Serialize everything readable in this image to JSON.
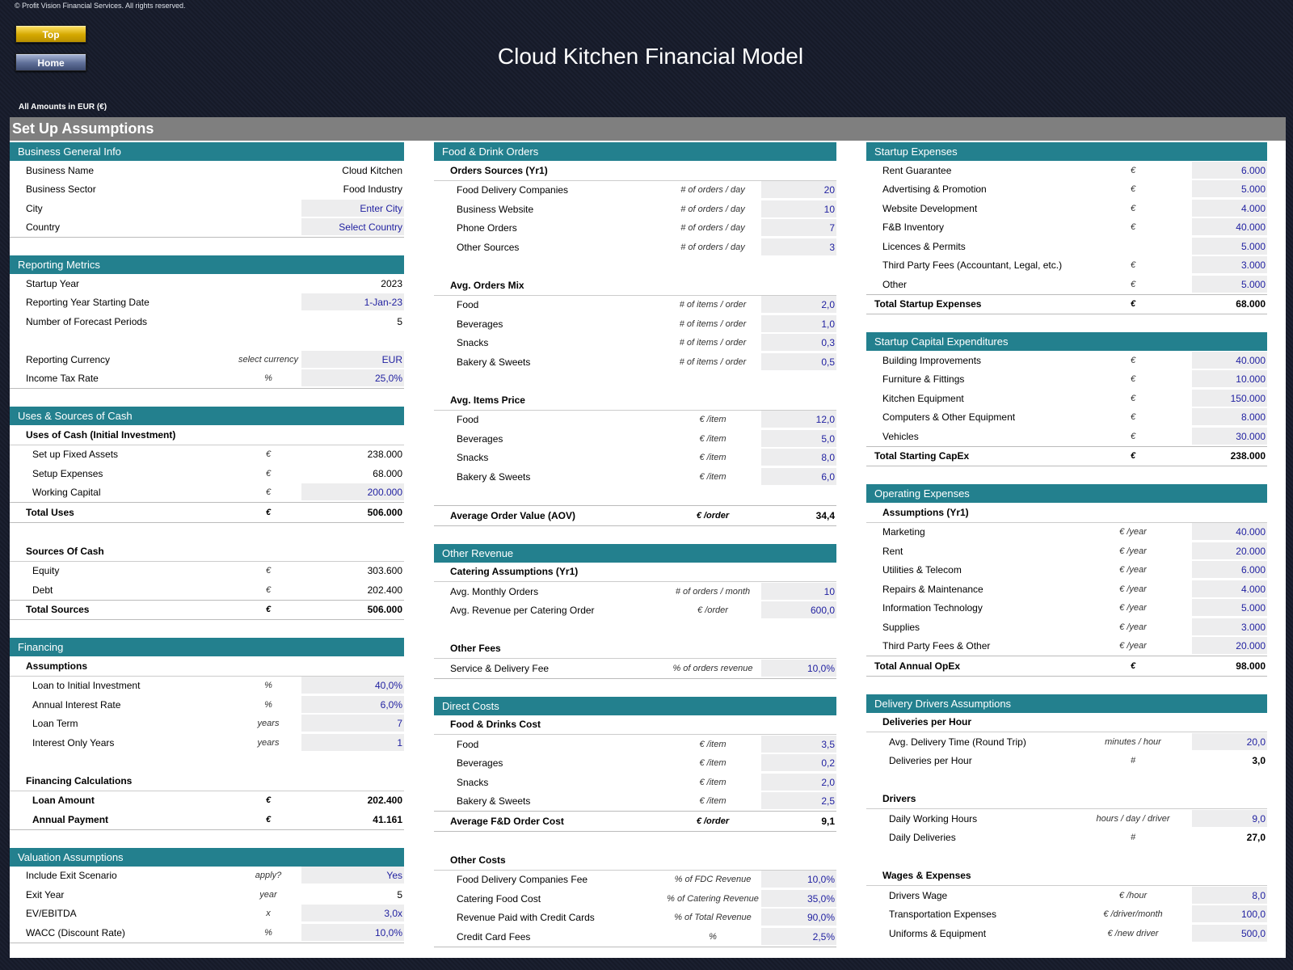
{
  "header": {
    "copyright": "© Profit Vision Financial Services. All rights reserved.",
    "top_button": "Top",
    "home_button": "Home",
    "title": "Cloud Kitchen Financial Model",
    "amounts_note": "All Amounts in  EUR (€)",
    "sheet_title": "Set Up Assumptions"
  },
  "col1": {
    "business": {
      "title": "Business General Info",
      "rows": [
        {
          "label": "Business Name",
          "unit": "",
          "value": "Cloud Kitchen",
          "input": false
        },
        {
          "label": "Business Sector",
          "unit": "",
          "value": "Food Industry",
          "input": false
        },
        {
          "label": "City",
          "unit": "",
          "value": "Enter City",
          "input": true
        },
        {
          "label": "Country",
          "unit": "",
          "value": "Select Country",
          "input": true
        }
      ]
    },
    "reporting": {
      "title": "Reporting Metrics",
      "rows": [
        {
          "label": "Startup Year",
          "unit": "",
          "value": "2023",
          "input": false
        },
        {
          "label": "Reporting Year Starting Date",
          "unit": "",
          "value": "1-Jan-23",
          "input": true
        },
        {
          "label": "Number of Forecast Periods",
          "unit": "",
          "value": "5",
          "input": false
        }
      ],
      "rows2": [
        {
          "label": "Reporting Currency",
          "unit": "select currency",
          "value": "EUR",
          "input": true
        },
        {
          "label": "Income Tax Rate",
          "unit": "%",
          "value": "25,0%",
          "input": true
        }
      ]
    },
    "uses": {
      "title": "Uses & Sources of Cash",
      "uses_head": "Uses of Cash (Initial Investment)",
      "uses_rows": [
        {
          "label": "Set up Fixed Assets",
          "unit": "€",
          "value": "238.000",
          "input": false
        },
        {
          "label": "Setup Expenses",
          "unit": "€",
          "value": "68.000",
          "input": false
        },
        {
          "label": "Working Capital",
          "unit": "€",
          "value": "200.000",
          "input": true
        }
      ],
      "uses_total": {
        "label": "Total Uses",
        "unit": "€",
        "value": "506.000"
      },
      "sources_head": "Sources Of Cash",
      "sources_rows": [
        {
          "label": "Equity",
          "unit": "€",
          "value": "303.600",
          "input": false
        },
        {
          "label": "Debt",
          "unit": "€",
          "value": "202.400",
          "input": false
        }
      ],
      "sources_total": {
        "label": "Total Sources",
        "unit": "€",
        "value": "506.000"
      }
    },
    "financing": {
      "title": "Financing",
      "assump_head": "Assumptions",
      "rows": [
        {
          "label": "Loan to Initial Investment",
          "unit": "%",
          "value": "40,0%",
          "input": true
        },
        {
          "label": "Annual Interest Rate",
          "unit": "%",
          "value": "6,0%",
          "input": true
        },
        {
          "label": "Loan Term",
          "unit": "years",
          "value": "7",
          "input": true
        },
        {
          "label": "Interest Only Years",
          "unit": "years",
          "value": "1",
          "input": true
        }
      ],
      "calc_head": "Financing Calculations",
      "calc_rows": [
        {
          "label": "Loan Amount",
          "unit": "€",
          "value": "202.400"
        },
        {
          "label": "Annual Payment",
          "unit": "€",
          "value": "41.161"
        }
      ]
    },
    "valuation": {
      "title": "Valuation Assumptions",
      "rows": [
        {
          "label": "Include Exit Scenario",
          "unit": "apply?",
          "value": "Yes",
          "input": true
        },
        {
          "label": "Exit Year",
          "unit": "year",
          "value": "5",
          "input": false
        },
        {
          "label": "EV/EBITDA",
          "unit": "x",
          "value": "3,0x",
          "input": true
        },
        {
          "label": "WACC (Discount Rate)",
          "unit": "%",
          "value": "10,0%",
          "input": true
        }
      ]
    }
  },
  "col2": {
    "orders": {
      "title": "Food & Drink Orders",
      "sources_head": "Orders Sources (Yr1)",
      "sources": [
        {
          "label": "Food Delivery Companies",
          "unit": "# of orders / day",
          "value": "20"
        },
        {
          "label": "Business Website",
          "unit": "# of orders / day",
          "value": "10"
        },
        {
          "label": "Phone Orders",
          "unit": "# of orders / day",
          "value": "7"
        },
        {
          "label": "Other Sources",
          "unit": "# of orders / day",
          "value": "3"
        }
      ],
      "mix_head": "Avg. Orders Mix",
      "mix": [
        {
          "label": "Food",
          "unit": "# of items / order",
          "value": "2,0"
        },
        {
          "label": "Beverages",
          "unit": "# of items / order",
          "value": "1,0"
        },
        {
          "label": "Snacks",
          "unit": "# of items / order",
          "value": "0,3"
        },
        {
          "label": "Bakery & Sweets",
          "unit": "# of items / order",
          "value": "0,5"
        }
      ],
      "price_head": "Avg. Items Price",
      "price": [
        {
          "label": "Food",
          "unit": "€ /item",
          "value": "12,0"
        },
        {
          "label": "Beverages",
          "unit": "€ /item",
          "value": "5,0"
        },
        {
          "label": "Snacks",
          "unit": "€ /item",
          "value": "8,0"
        },
        {
          "label": "Bakery & Sweets",
          "unit": "€ /item",
          "value": "6,0"
        }
      ],
      "aov": {
        "label": "Average Order Value (AOV)",
        "unit": "€ /order",
        "value": "34,4"
      }
    },
    "other_revenue": {
      "title": "Other Revenue",
      "catering_head": "Catering Assumptions (Yr1)",
      "catering": [
        {
          "label": "Avg. Monthly Orders",
          "unit": "# of orders / month",
          "value": "10"
        },
        {
          "label": "Avg. Revenue per Catering Order",
          "unit": "€ /order",
          "value": "600,0"
        }
      ],
      "fees_head": "Other Fees",
      "fees": [
        {
          "label": "Service & Delivery Fee",
          "unit": "% of orders revenue",
          "value": "10,0%"
        }
      ]
    },
    "direct": {
      "title": "Direct Costs",
      "cost_head": "Food & Drinks Cost",
      "costs": [
        {
          "label": "Food",
          "unit": "€ /item",
          "value": "3,5"
        },
        {
          "label": "Beverages",
          "unit": "€ /item",
          "value": "0,2"
        },
        {
          "label": "Snacks",
          "unit": "€ /item",
          "value": "2,0"
        },
        {
          "label": "Bakery & Sweets",
          "unit": "€ /item",
          "value": "2,5"
        }
      ],
      "avg": {
        "label": "Average F&D Order Cost",
        "unit": "€ /order",
        "value": "9,1"
      },
      "other_head": "Other Costs",
      "other": [
        {
          "label": "Food Delivery Companies Fee",
          "unit": "% of FDC Revenue",
          "value": "10,0%"
        },
        {
          "label": "Catering Food Cost",
          "unit": "% of Catering Revenue",
          "value": "35,0%"
        },
        {
          "label": "Revenue Paid with Credit Cards",
          "unit": "% of Total Revenue",
          "value": "90,0%"
        },
        {
          "label": "Credit Card Fees",
          "unit": "%",
          "value": "2,5%"
        }
      ]
    }
  },
  "col3": {
    "startup": {
      "title": "Startup Expenses",
      "rows": [
        {
          "label": "Rent Guarantee",
          "unit": "€",
          "value": "6.000"
        },
        {
          "label": "Advertising & Promotion",
          "unit": "€",
          "value": "5.000"
        },
        {
          "label": "Website Development",
          "unit": "€",
          "value": "4.000"
        },
        {
          "label": "F&B Inventory",
          "unit": "€",
          "value": "40.000"
        },
        {
          "label": "Licences & Permits",
          "unit": "",
          "value": "5.000"
        },
        {
          "label": "Third Party Fees (Accountant, Legal, etc.)",
          "unit": "€",
          "value": "3.000"
        },
        {
          "label": "Other",
          "unit": "€",
          "value": "5.000"
        }
      ],
      "total": {
        "label": "Total Startup Expenses",
        "unit": "€",
        "value": "68.000"
      }
    },
    "capex": {
      "title": "Startup Capital Expenditures",
      "rows": [
        {
          "label": "Building Improvements",
          "unit": "€",
          "value": "40.000"
        },
        {
          "label": "Furniture & Fittings",
          "unit": "€",
          "value": "10.000"
        },
        {
          "label": "Kitchen Equipment",
          "unit": "€",
          "value": "150.000"
        },
        {
          "label": "Computers & Other Equipment",
          "unit": "€",
          "value": "8.000"
        },
        {
          "label": "Vehicles",
          "unit": "€",
          "value": "30.000"
        }
      ],
      "total": {
        "label": "Total Starting CapEx",
        "unit": "€",
        "value": "238.000"
      }
    },
    "opex": {
      "title": "Operating Expenses",
      "head": "Assumptions (Yr1)",
      "rows": [
        {
          "label": "Marketing",
          "unit": "€ /year",
          "value": "40.000"
        },
        {
          "label": "Rent",
          "unit": "€ /year",
          "value": "20.000"
        },
        {
          "label": "Utilities & Telecom",
          "unit": "€ /year",
          "value": "6.000"
        },
        {
          "label": "Repairs & Maintenance",
          "unit": "€ /year",
          "value": "4.000"
        },
        {
          "label": "Information Technology",
          "unit": "€ /year",
          "value": "5.000"
        },
        {
          "label": "Supplies",
          "unit": "€ /year",
          "value": "3.000"
        },
        {
          "label": "Third Party Fees & Other",
          "unit": "€ /year",
          "value": "20.000"
        }
      ],
      "total": {
        "label": "Total Annual OpEx",
        "unit": "€",
        "value": "98.000"
      }
    },
    "drivers": {
      "title": "Delivery Drivers Assumptions",
      "dph_head": "Deliveries per Hour",
      "dph": [
        {
          "label": "Avg. Delivery Time (Round Trip)",
          "unit": "minutes / hour",
          "value": "20,0",
          "input": true
        },
        {
          "label": "Deliveries per Hour",
          "unit": "#",
          "value": "3,0",
          "input": false
        }
      ],
      "drivers_head": "Drivers",
      "drivers": [
        {
          "label": "Daily Working Hours",
          "unit": "hours / day / driver",
          "value": "9,0",
          "input": true
        },
        {
          "label": "Daily Deliveries",
          "unit": "#",
          "value": "27,0",
          "input": false
        }
      ],
      "wages_head": "Wages & Expenses",
      "wages": [
        {
          "label": "Drivers Wage",
          "unit": "€ /hour",
          "value": "8,0",
          "input": true
        },
        {
          "label": "Transportation Expenses",
          "unit": "€ /driver/month",
          "value": "100,0",
          "input": true
        },
        {
          "label": "Uniforms & Equipment",
          "unit": "€ /new driver",
          "value": "500,0",
          "input": true
        }
      ]
    }
  }
}
